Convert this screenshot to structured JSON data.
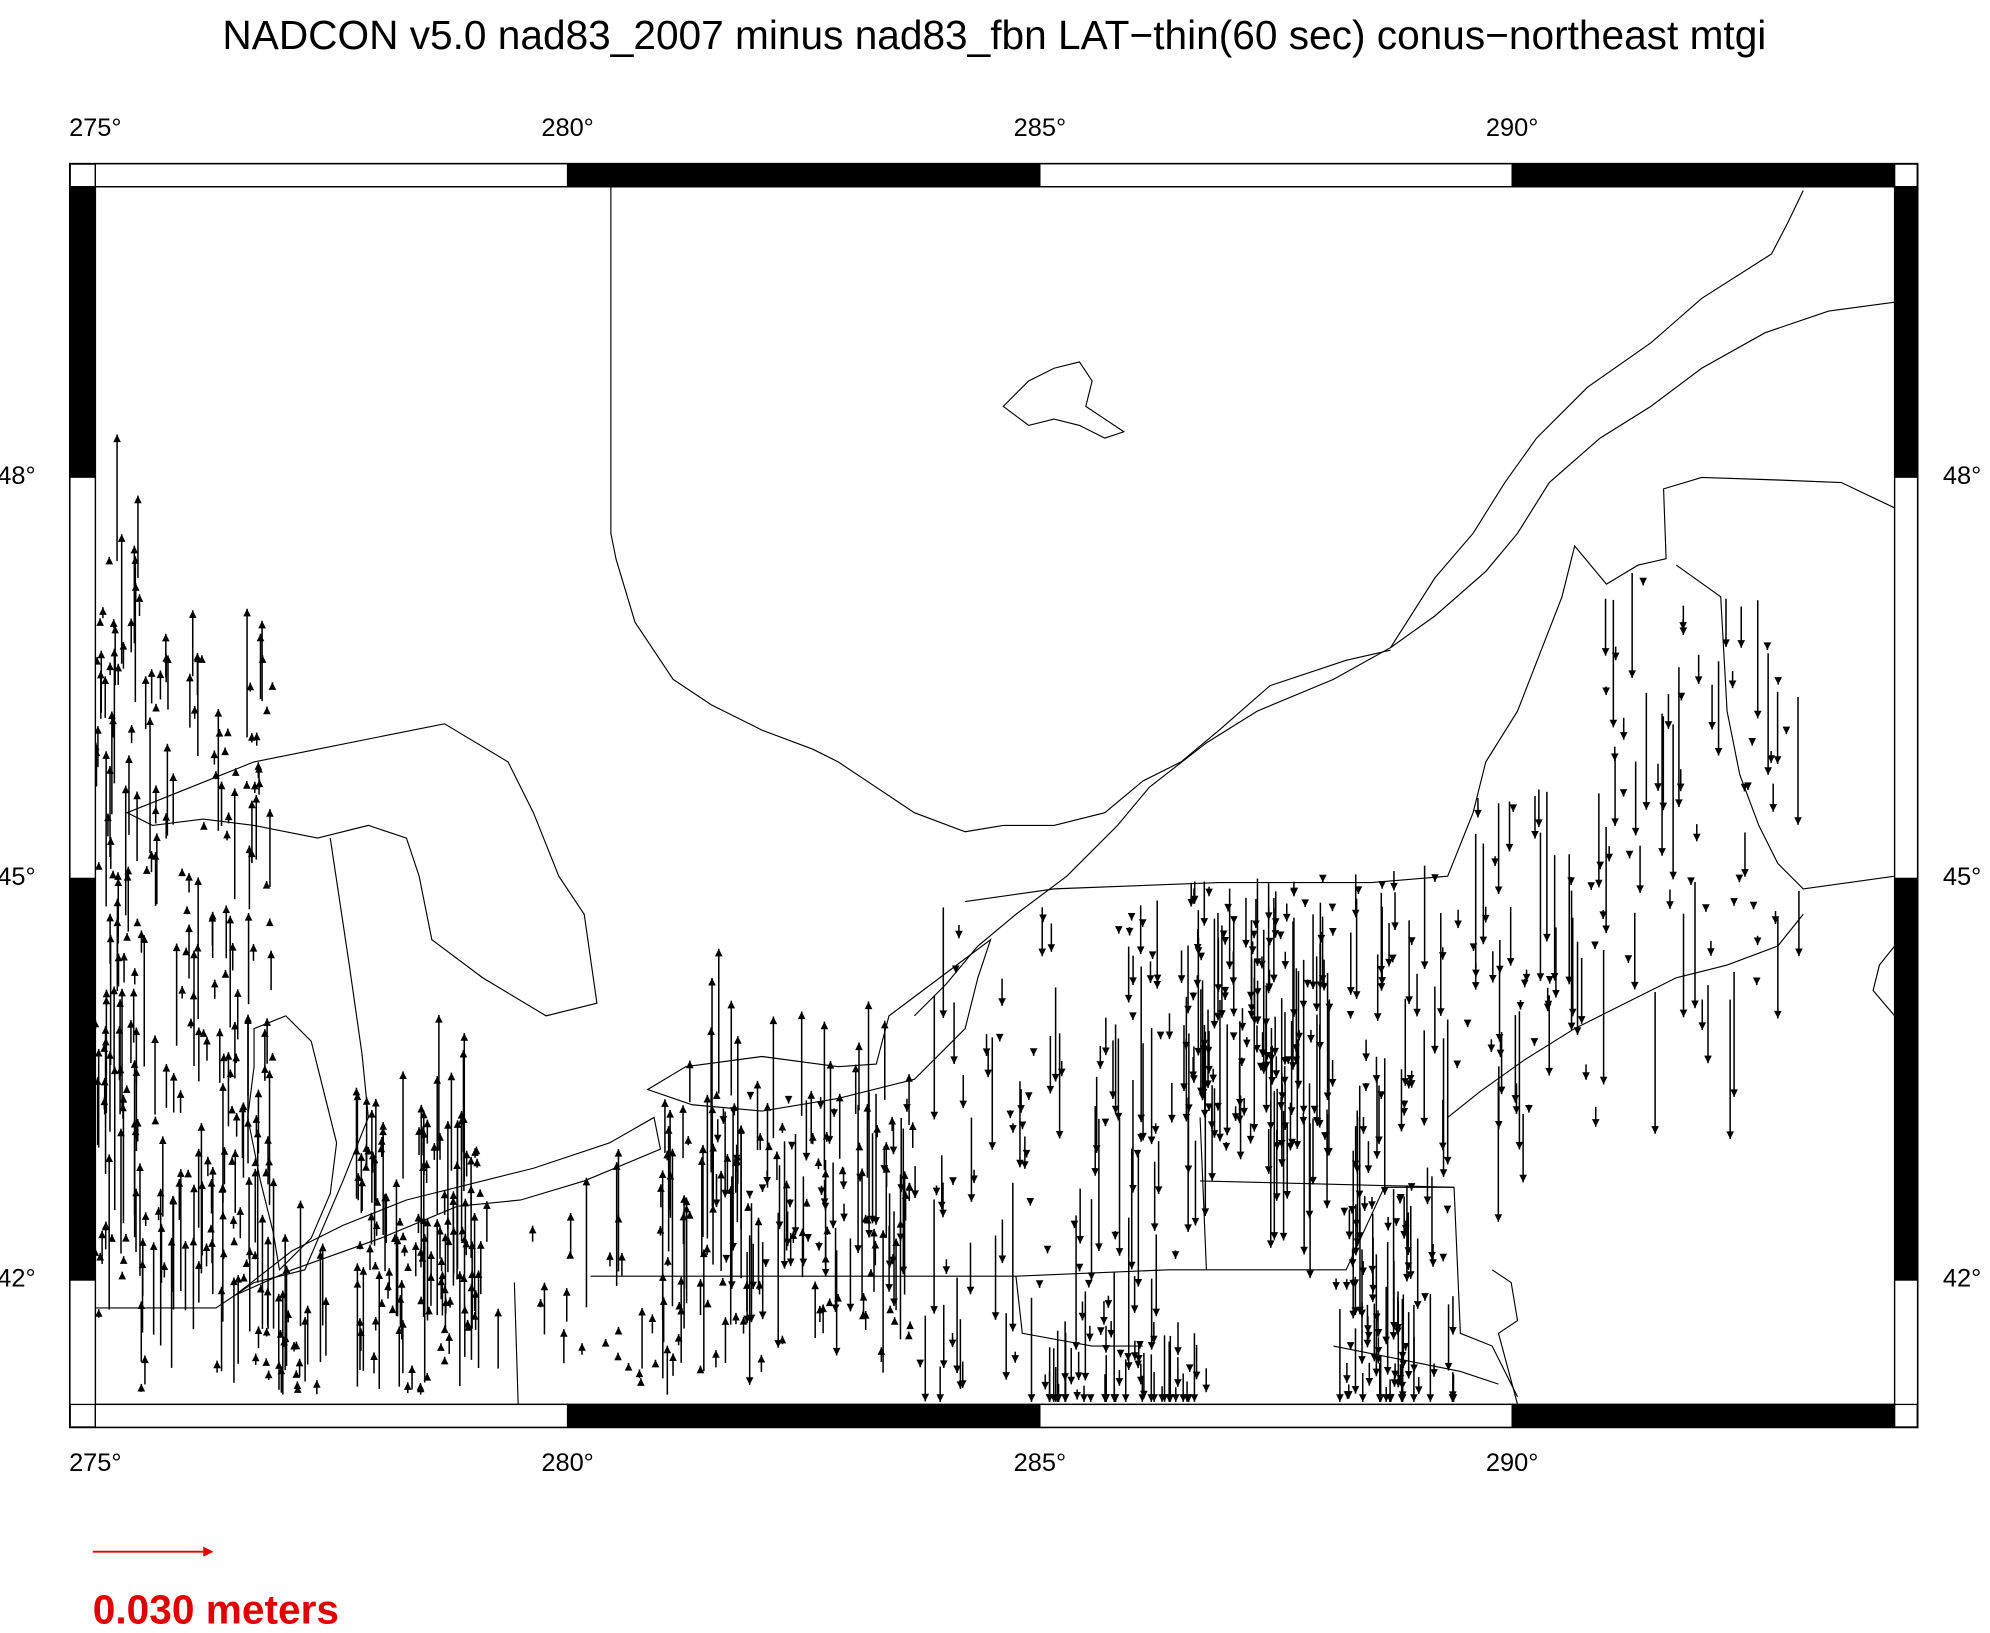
{
  "title": "NADCON v5.0 nad83_2007 minus nad83_fbn LAT−thin(60 sec) conus−northeast mtgi",
  "map": {
    "xlim": [
      275,
      294.05
    ],
    "ylim": [
      41.07,
      50.17
    ],
    "xticks": [
      {
        "value": 275,
        "label": "275°"
      },
      {
        "value": 280,
        "label": "280°"
      },
      {
        "value": 285,
        "label": "285°"
      },
      {
        "value": 290,
        "label": "290°"
      }
    ],
    "yticks": [
      {
        "value": 42,
        "label": "42°"
      },
      {
        "value": 45,
        "label": "45°"
      },
      {
        "value": 48,
        "label": "48°"
      }
    ]
  },
  "scale": {
    "label": "0.030 meters",
    "color": "#e00000"
  }
}
